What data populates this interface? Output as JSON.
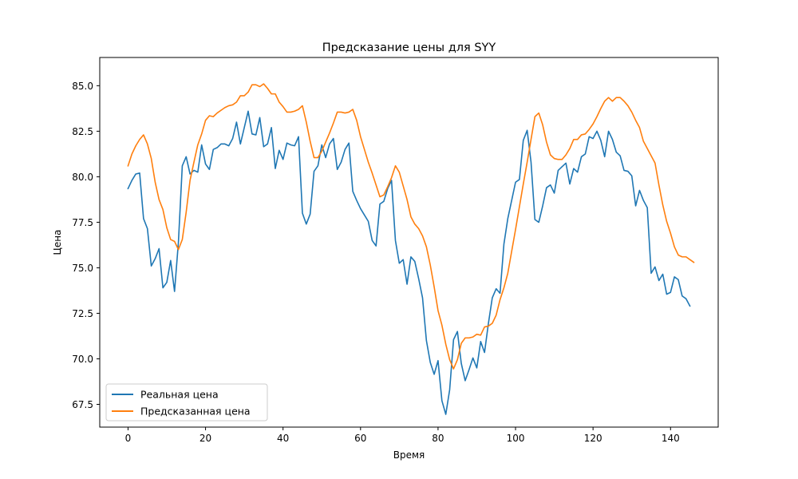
{
  "chart_data": {
    "type": "line",
    "title": "Предсказание цены для SYY",
    "xlabel": "Время",
    "ylabel": "Цена",
    "xlim": [
      -7.3,
      152.3
    ],
    "ylim": [
      66.25,
      86.55
    ],
    "x_ticks": [
      0,
      20,
      40,
      60,
      80,
      100,
      120,
      140
    ],
    "y_ticks": [
      67.5,
      70.0,
      72.5,
      75.0,
      77.5,
      80.0,
      82.5,
      85.0
    ],
    "y_tick_labels": [
      "67.5",
      "70.0",
      "72.5",
      "75.0",
      "77.5",
      "80.0",
      "82.5",
      "85.0"
    ],
    "x_tick_labels": [
      "0",
      "20",
      "40",
      "60",
      "80",
      "100",
      "120",
      "140"
    ],
    "grid": false,
    "legend_position": "lower-left",
    "series": [
      {
        "name": "Реальная цена",
        "color": "#1f77b4",
        "values": [
          79.35,
          79.8,
          80.15,
          80.2,
          77.7,
          77.15,
          75.1,
          75.5,
          76.05,
          73.9,
          74.2,
          75.4,
          73.7,
          76.4,
          80.6,
          81.1,
          80.15,
          80.35,
          80.25,
          81.75,
          80.7,
          80.4,
          81.5,
          81.6,
          81.8,
          81.8,
          81.7,
          82.1,
          83.0,
          81.8,
          82.7,
          83.6,
          82.35,
          82.3,
          83.25,
          81.65,
          81.8,
          82.7,
          80.45,
          81.45,
          80.95,
          81.85,
          81.75,
          81.7,
          82.2,
          78.0,
          77.4,
          77.95,
          80.3,
          80.6,
          81.75,
          81.05,
          81.8,
          82.1,
          80.4,
          80.8,
          81.5,
          81.85,
          79.2,
          78.7,
          78.25,
          77.9,
          77.55,
          76.5,
          76.2,
          78.5,
          78.65,
          79.35,
          79.8,
          76.5,
          75.25,
          75.45,
          74.1,
          75.6,
          75.35,
          74.4,
          73.35,
          71.0,
          69.8,
          69.15,
          69.9,
          67.7,
          66.95,
          68.3,
          71.05,
          71.5,
          69.75,
          68.8,
          69.4,
          70.05,
          69.5,
          70.95,
          70.35,
          71.95,
          73.35,
          73.85,
          73.6,
          76.3,
          77.7,
          78.7,
          79.7,
          79.85,
          82.0,
          82.55,
          80.8,
          77.65,
          77.5,
          78.4,
          79.4,
          79.55,
          79.1,
          80.35,
          80.55,
          80.75,
          79.6,
          80.45,
          80.25,
          81.1,
          81.25,
          82.2,
          82.1,
          82.5,
          82.0,
          81.1,
          82.5,
          82.05,
          81.35,
          81.15,
          80.35,
          80.3,
          80.05,
          78.4,
          79.25,
          78.7,
          78.3,
          74.7,
          75.05,
          74.3,
          74.65,
          73.55,
          73.65,
          74.5,
          74.35,
          73.45,
          73.3,
          72.9
        ]
      },
      {
        "name": "Предсказанная цена",
        "color": "#ff7f0e",
        "values": [
          80.6,
          81.25,
          81.7,
          82.05,
          82.3,
          81.8,
          81.0,
          79.7,
          78.75,
          78.2,
          77.2,
          76.55,
          76.45,
          76.0,
          76.55,
          78.05,
          79.8,
          80.8,
          81.75,
          82.35,
          83.1,
          83.35,
          83.3,
          83.5,
          83.65,
          83.8,
          83.9,
          83.95,
          84.1,
          84.45,
          84.45,
          84.65,
          85.05,
          85.05,
          84.95,
          85.1,
          84.85,
          84.55,
          84.55,
          84.1,
          83.85,
          83.55,
          83.55,
          83.6,
          83.7,
          83.9,
          83.0,
          81.95,
          81.05,
          81.05,
          81.4,
          81.9,
          82.4,
          82.95,
          83.55,
          83.55,
          83.5,
          83.55,
          83.7,
          83.1,
          82.2,
          81.5,
          80.8,
          80.2,
          79.55,
          78.9,
          79.0,
          79.45,
          79.95,
          80.6,
          80.25,
          79.5,
          78.75,
          77.8,
          77.4,
          77.15,
          76.75,
          76.15,
          75.15,
          73.95,
          72.65,
          71.85,
          70.8,
          69.95,
          69.45,
          69.95,
          70.85,
          71.15,
          71.15,
          71.2,
          71.35,
          71.3,
          71.75,
          71.8,
          71.95,
          72.4,
          73.25,
          73.9,
          74.7,
          75.9,
          77.1,
          78.35,
          79.6,
          80.8,
          82.05,
          83.3,
          83.5,
          82.85,
          81.9,
          81.2,
          81.0,
          80.95,
          80.95,
          81.2,
          81.55,
          82.05,
          82.05,
          82.3,
          82.35,
          82.6,
          82.9,
          83.3,
          83.75,
          84.15,
          84.35,
          84.15,
          84.35,
          84.35,
          84.15,
          83.9,
          83.55,
          83.1,
          82.7,
          81.95,
          81.55,
          81.15,
          80.75,
          79.55,
          78.45,
          77.55,
          76.9,
          76.15,
          75.7,
          75.6,
          75.6,
          75.45,
          75.3
        ]
      }
    ]
  }
}
